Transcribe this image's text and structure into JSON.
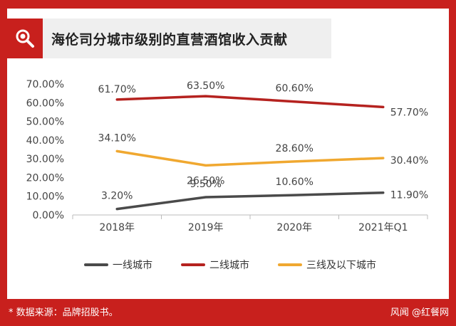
{
  "header": {
    "title": "海伦司分城市级别的直营酒馆收入贡献",
    "icon": "search-icon"
  },
  "footer": {
    "source": "* 数据来源：品牌招股书。",
    "credit": "风闻 @红餐网"
  },
  "colors": {
    "frame": "#c8201d",
    "tier1": "#4a4a4a",
    "tier2": "#b5221f",
    "tier3": "#f0a830"
  },
  "chart_data": {
    "type": "line",
    "title": "海伦司分城市级别的直营酒馆收入贡献",
    "categories": [
      "2018年",
      "2019年",
      "2020年",
      "2021年Q1"
    ],
    "y_ticks": [
      "0.00%",
      "10.00%",
      "20.00%",
      "30.00%",
      "40.00%",
      "50.00%",
      "60.00%",
      "70.00%"
    ],
    "ylim": [
      0,
      70
    ],
    "grid": false,
    "legend_position": "bottom",
    "series": [
      {
        "name": "一线城市",
        "values": [
          3.2,
          9.5,
          10.6,
          11.9
        ],
        "labels": [
          "3.20%",
          "9.50%",
          "10.60%",
          "11.90%"
        ],
        "color": "#4a4a4a"
      },
      {
        "name": "二线城市",
        "values": [
          61.7,
          63.5,
          60.6,
          57.7
        ],
        "labels": [
          "61.70%",
          "63.50%",
          "60.60%",
          "57.70%"
        ],
        "color": "#b5221f"
      },
      {
        "name": "三线及以下城市",
        "values": [
          34.1,
          26.5,
          28.6,
          30.4
        ],
        "labels": [
          "34.10%",
          "26.50%",
          "28.60%",
          "30.40%"
        ],
        "color": "#f0a830"
      }
    ]
  }
}
